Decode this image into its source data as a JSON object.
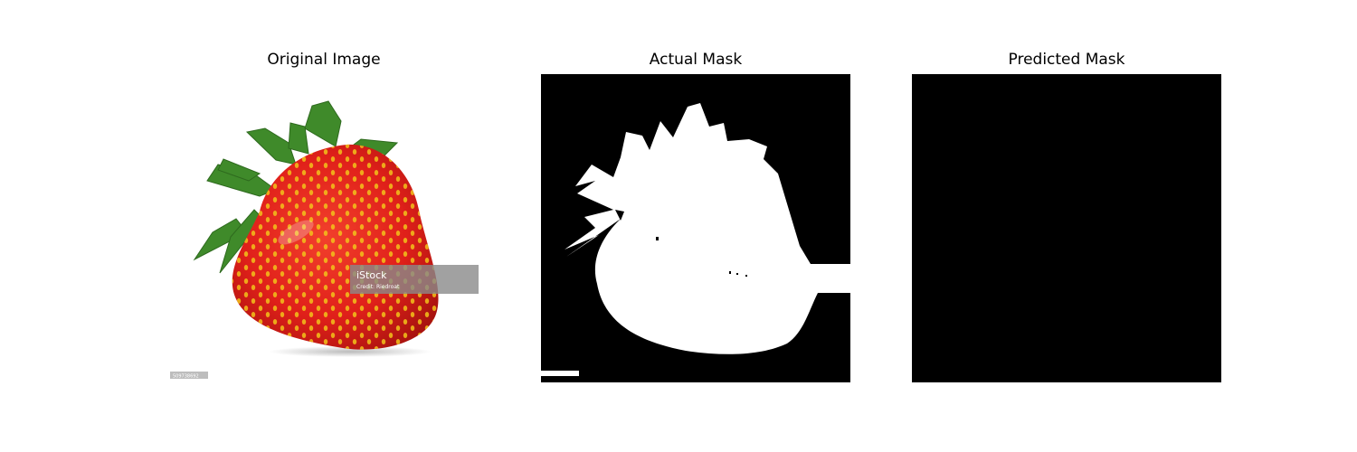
{
  "panels": [
    {
      "title": "Original Image"
    },
    {
      "title": "Actual Mask"
    },
    {
      "title": "Predicted Mask"
    }
  ],
  "watermark": {
    "brand": "iStock",
    "credit": "Credit: Riedroat",
    "id": "509738692"
  },
  "colors": {
    "background": "#ffffff",
    "mask_background": "#000000",
    "mask_foreground": "#ffffff",
    "strawberry_red": "#e3231b",
    "seed_yellow": "#f2c21a",
    "leaf_green": "#3f8a2a"
  }
}
